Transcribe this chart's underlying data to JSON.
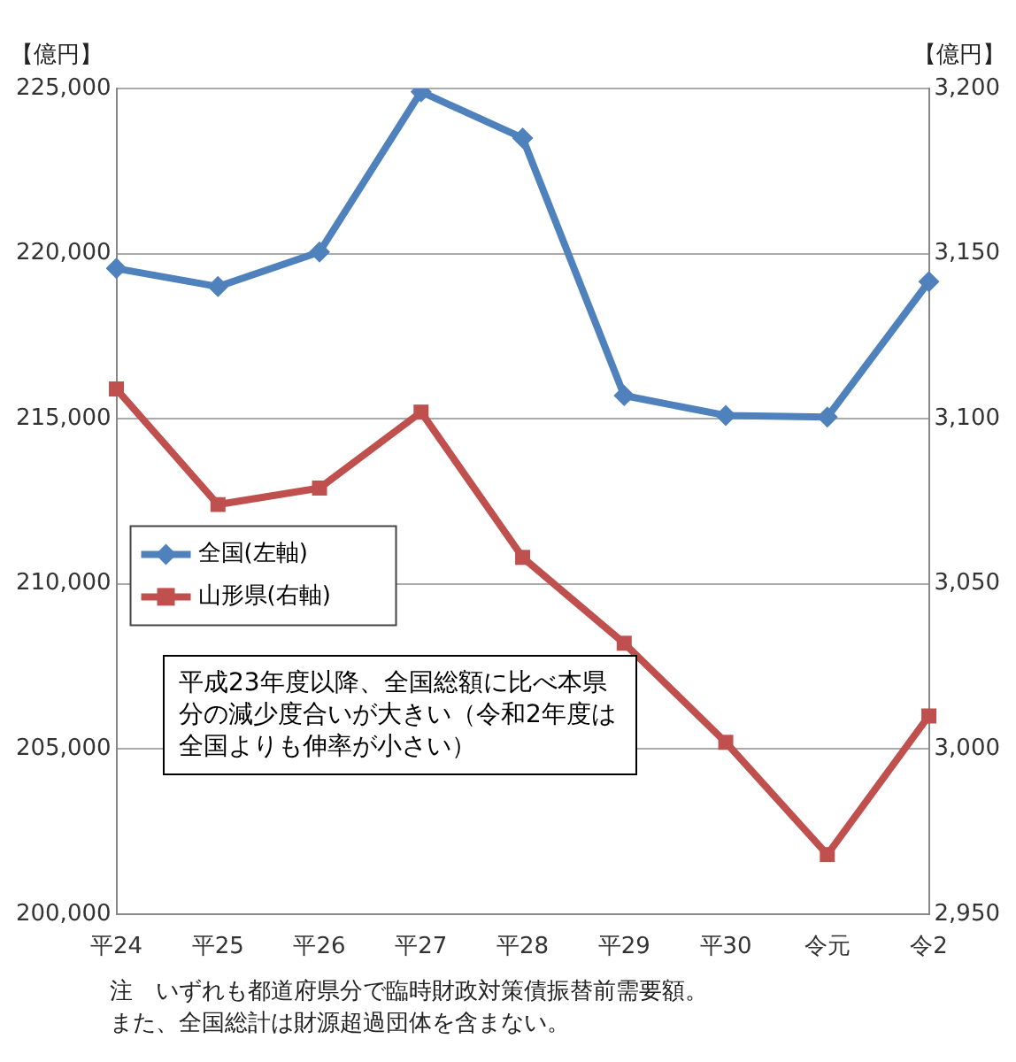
{
  "chart_data": {
    "type": "line",
    "ylabel": "【億円】",
    "y2label": "【億円】",
    "categories": [
      "平24",
      "平25",
      "平26",
      "平27",
      "平28",
      "平29",
      "平30",
      "令元",
      "令2"
    ],
    "series": [
      {
        "name": "全国(左軸)",
        "color": "#4f81bd",
        "marker": "diamond",
        "values": [
          219550,
          219000,
          220050,
          224900,
          223500,
          215700,
          215100,
          215050,
          219150
        ]
      },
      {
        "name": "山形県(右軸)",
        "color": "#c0504d",
        "marker": "square",
        "axis": "y2",
        "values": [
          3109,
          3074,
          3079,
          3102,
          3058,
          3032,
          3002,
          2968,
          3010
        ]
      }
    ],
    "ylim": [
      200000,
      225000
    ],
    "yticks": [
      {
        "value": 200000,
        "label": "200,000"
      },
      {
        "value": 205000,
        "label": "205,000"
      },
      {
        "value": 210000,
        "label": "210,000"
      },
      {
        "value": 215000,
        "label": "215,000"
      },
      {
        "value": 220000,
        "label": "220,000"
      },
      {
        "value": 225000,
        "label": "225,000"
      }
    ],
    "y2lim": [
      2950,
      3200
    ],
    "y2ticks": [
      {
        "value": 2950,
        "label": "2,950"
      },
      {
        "value": 3000,
        "label": "3,000"
      },
      {
        "value": 3050,
        "label": "3,050"
      },
      {
        "value": 3100,
        "label": "3,100"
      },
      {
        "value": 3150,
        "label": "3,150"
      },
      {
        "value": 3200,
        "label": "3,200"
      }
    ],
    "grid": "y",
    "legend": "left",
    "annotations": [
      "平成23年度以降、全国総額に比べ本県分の減少度合いが大きい（令和2年度は全国よりも伸率が小さい）",
      "注　いずれも都道府県分で臨時財政対策債振替前需要額。",
      "また、全国総計は財源超過団体を含まない。"
    ]
  }
}
